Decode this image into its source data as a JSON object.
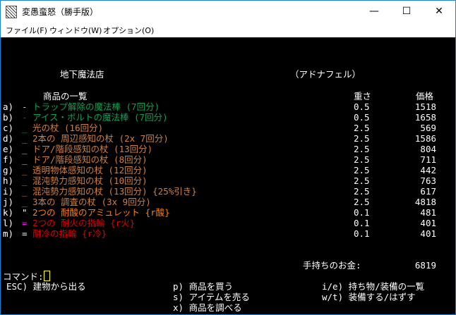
{
  "window": {
    "title": "変愚蛮怒（勝手版）",
    "minimize": "—",
    "maximize": "☐",
    "close": "✕"
  },
  "menu": [
    "ファイル(F)",
    "ウィンドウ(W)",
    "オプション(O)"
  ],
  "shop": {
    "name": "地下魔法店",
    "owner": "（アドナフェル）",
    "list_header": "商品の一覧",
    "weight_header": "重さ",
    "price_header": "価格"
  },
  "items": [
    {
      "key": "a)",
      "sym": "-",
      "sym_color": "#c0c0c0",
      "name": "トラップ解除の魔法棒 (7回分)",
      "color": "#10a050",
      "weight": "0.5",
      "price": "1518"
    },
    {
      "key": "b)",
      "sym": "-",
      "sym_color": "#e00000",
      "name": "アイス・ボルトの魔法棒 (7回分)",
      "color": "#10a050",
      "weight": "0.5",
      "price": "1658"
    },
    {
      "key": "c)",
      "sym": "_",
      "sym_color": "#10a050",
      "name": "光の杖 (16回分)",
      "color": "#d08040",
      "weight": "2.5",
      "price": "569"
    },
    {
      "key": "d)",
      "sym": "_",
      "sym_color": "#d08040",
      "name": "2本の 周辺感知の杖 (2x 7回分)",
      "color": "#d08040",
      "weight": "2.5",
      "price": "1586"
    },
    {
      "key": "e)",
      "sym": "_",
      "sym_color": "#d0d0d0",
      "name": "ドア/階段感知の杖 (13回分)",
      "color": "#d08040",
      "weight": "2.5",
      "price": "804"
    },
    {
      "key": "f)",
      "sym": "_",
      "sym_color": "#d0d0d0",
      "name": "ドア/階段感知の杖 (8回分)",
      "color": "#d08040",
      "weight": "2.5",
      "price": "711"
    },
    {
      "key": "g)",
      "sym": "_",
      "sym_color": "#d08040",
      "name": "透明物体感知の杖 (12回分)",
      "color": "#d08040",
      "weight": "2.5",
      "price": "442"
    },
    {
      "key": "h)",
      "sym": "_",
      "sym_color": "#d08040",
      "name": "混沌勢力感知の杖 (10回分)",
      "color": "#d08040",
      "weight": "2.5",
      "price": "763"
    },
    {
      "key": "i)",
      "sym": "_",
      "sym_color": "#d08040",
      "name": "混沌勢力感知の杖 (13回分) {25%引き}",
      "color": "#d08040",
      "weight": "2.5",
      "price": "617"
    },
    {
      "key": "j)",
      "sym": "_",
      "sym_color": "#d08040",
      "name": "3本の 調査の杖 (3x 9回分)",
      "color": "#d08040",
      "weight": "2.5",
      "price": "4818"
    },
    {
      "key": "k)",
      "sym": "\"",
      "sym_color": "#ffffff",
      "name": "2つの 耐酸のアミュレット {r酸}",
      "color": "#ff8000",
      "weight": "0.1",
      "price": "481"
    },
    {
      "key": "l)",
      "sym": "=",
      "sym_color": "#ff00ff",
      "name": "2つの 耐火の指輪 {r火}",
      "color": "#e00000",
      "weight": "0.1",
      "price": "401"
    },
    {
      "key": "m)",
      "sym": "=",
      "sym_color": "#ffffff",
      "name": "耐冷の指輪 {r冷}",
      "color": "#e00000",
      "weight": "0.1",
      "price": "401"
    }
  ],
  "gold": {
    "label": "手持ちのお金:",
    "value": "6819"
  },
  "command": {
    "prompt": "コマンド:"
  },
  "help": {
    "esc": "ESC) 建物から出る",
    "p": "p) 商品を買う",
    "s": "s) アイテムを売る",
    "x": "x) 商品を調べる",
    "ie": "i/e) 持ち物/装備の一覧",
    "wt": "w/t) 装備する/はずす"
  }
}
